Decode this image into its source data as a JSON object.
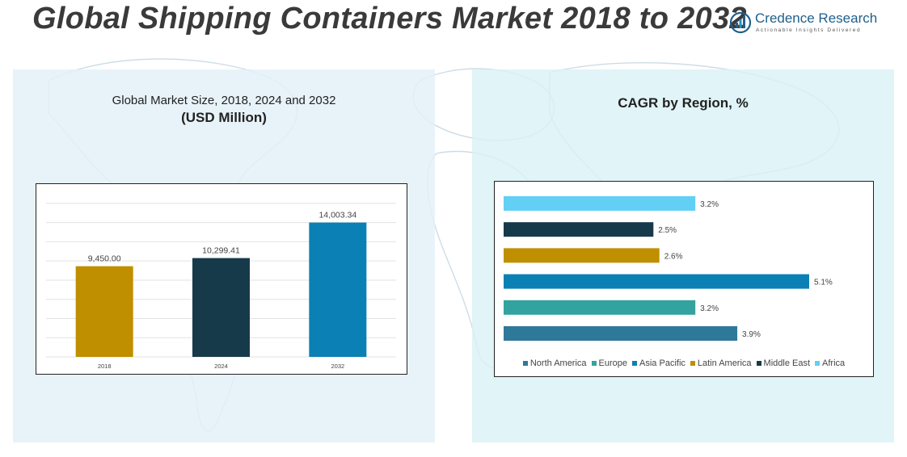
{
  "header": {
    "title": "Global Shipping Containers Market 2018 to 2032",
    "logo_name": "Credence Research",
    "logo_tagline": "Actionable Insights Delivered"
  },
  "colors": {
    "map": "#c8d9e3",
    "gold": "#bf8f00",
    "dark_navy": "#173a4b",
    "blue": "#0b80b4",
    "light_blue": "#62cff4",
    "teal": "#33a39f",
    "steel_blue": "#2e7899"
  },
  "chart_data": [
    {
      "type": "bar",
      "title": "Global Market Size, 2018, 2024 and 2032",
      "subtitle": "(USD Million)",
      "categories": [
        "2018",
        "2024",
        "2032"
      ],
      "values": [
        9450.0,
        10299.41,
        14003.34
      ],
      "value_labels": [
        "9,450.00",
        "10,299.41",
        "14,003.34"
      ],
      "bar_colors": [
        "#bf8f00",
        "#173a4b",
        "#0b80b4"
      ],
      "ylim": [
        0,
        17000
      ],
      "grid": true,
      "xlabel": "",
      "ylabel": ""
    },
    {
      "type": "bar",
      "orientation": "horizontal",
      "title": "CAGR by Region, %",
      "categories": [
        "North America",
        "Europe",
        "Asia Pacific",
        "Latin America",
        "Middle East",
        "Africa"
      ],
      "values": [
        3.9,
        3.2,
        5.1,
        2.6,
        2.5,
        3.2
      ],
      "value_labels": [
        "3.9%",
        "3.2%",
        "5.1%",
        "2.6%",
        "2.5%",
        "3.2%"
      ],
      "bar_colors": [
        "#2e7899",
        "#33a39f",
        "#0b80b4",
        "#bf8f00",
        "#173a4b",
        "#62cff4"
      ],
      "xlim": [
        0,
        5.1
      ],
      "legend_position": "bottom",
      "grid": false
    }
  ]
}
